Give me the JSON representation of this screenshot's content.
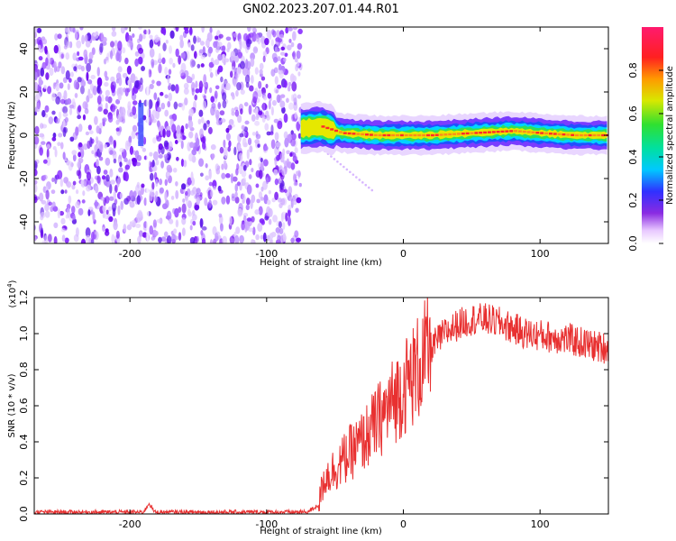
{
  "title": "GN02.2023.207.01.44.R01",
  "chart_data": [
    {
      "type": "heatmap",
      "xlabel": "Height of straight line (km)",
      "ylabel": "Frequency (Hz)",
      "xlim": [
        -270,
        150
      ],
      "ylim": [
        -50,
        50
      ],
      "x_ticks": [
        -200,
        -100,
        0,
        100
      ],
      "y_ticks": [
        -40,
        -20,
        0,
        20,
        40
      ],
      "colorbar": {
        "label": "Normalized spectral amplitude",
        "range": [
          0.0,
          1.0
        ],
        "ticks": [
          0.0,
          0.2,
          0.4,
          0.6,
          0.8
        ],
        "tick_labels": [
          "0.0",
          "0.2",
          "0.4",
          "0.6",
          "0.8"
        ]
      },
      "regions": [
        {
          "x_from": -270,
          "x_to": -75,
          "description": "broadband noise, low amplitude (purple speckle)"
        },
        {
          "x_from": -75,
          "x_to": 150,
          "description": "narrow band near 0 Hz, high amplitude"
        }
      ],
      "band_center_hz": [
        {
          "x": -75,
          "y": 3
        },
        {
          "x": -60,
          "y": 4
        },
        {
          "x": -45,
          "y": 1
        },
        {
          "x": -20,
          "y": 0
        },
        {
          "x": 0,
          "y": 0
        },
        {
          "x": 20,
          "y": 0
        },
        {
          "x": 50,
          "y": 1
        },
        {
          "x": 80,
          "y": 2
        },
        {
          "x": 100,
          "y": 1
        },
        {
          "x": 125,
          "y": 0
        },
        {
          "x": 150,
          "y": 0
        }
      ]
    },
    {
      "type": "line",
      "xlabel": "Height of straight line (km)",
      "ylabel": "SNR (10 * v/v)",
      "y_multiplier": "(x10",
      "y_multiplier_exp": "4",
      "y_multiplier_close": ")",
      "xlim": [
        -270,
        150
      ],
      "ylim": [
        0.0,
        1.2
      ],
      "x_ticks": [
        -200,
        -100,
        0,
        100
      ],
      "y_ticks": [
        0.0,
        0.2,
        0.4,
        0.6,
        0.8,
        1.0,
        1.2
      ],
      "y_tick_labels": [
        "0.0",
        "0.2",
        "0.4",
        "0.6",
        "0.8",
        "1.0",
        "1.2"
      ],
      "color": "#e83030",
      "series": [
        {
          "x": [
            -270,
            -200,
            -190,
            -186,
            -182,
            -150,
            -100,
            -70,
            -62,
            -58,
            -50,
            -40,
            -30,
            -20,
            -10,
            0,
            10,
            20,
            30,
            40,
            50,
            60,
            70,
            80,
            90,
            100,
            110,
            120,
            130,
            140,
            150
          ],
          "y": [
            0.01,
            0.01,
            0.01,
            0.06,
            0.01,
            0.01,
            0.01,
            0.01,
            0.05,
            0.2,
            0.25,
            0.33,
            0.4,
            0.5,
            0.6,
            0.7,
            0.8,
            0.92,
            1.0,
            1.05,
            1.08,
            1.08,
            1.06,
            1.03,
            1.0,
            0.99,
            0.98,
            0.97,
            0.95,
            0.93,
            0.92
          ]
        }
      ]
    }
  ]
}
